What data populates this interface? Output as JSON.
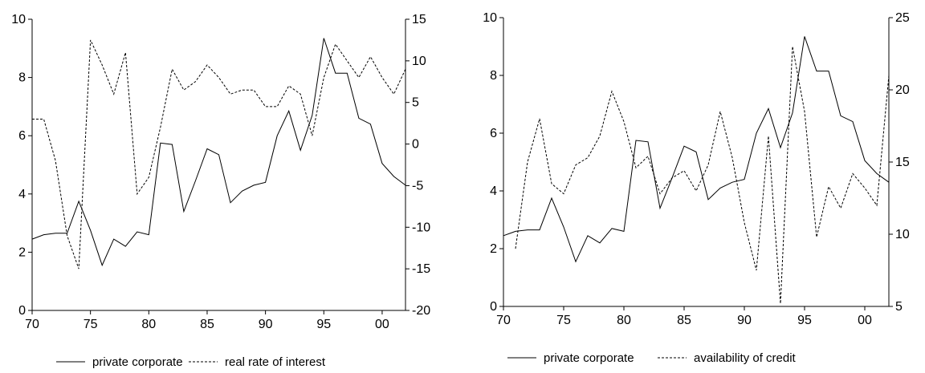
{
  "chart_data": [
    {
      "type": "line",
      "x": [
        1970,
        1971,
        1972,
        1973,
        1974,
        1975,
        1976,
        1977,
        1978,
        1979,
        1980,
        1981,
        1982,
        1983,
        1984,
        1985,
        1986,
        1987,
        1988,
        1989,
        1990,
        1991,
        1992,
        1993,
        1994,
        1995,
        1996,
        1997,
        1998,
        1999,
        2000,
        2001,
        2002
      ],
      "xticks": [
        1970,
        1975,
        1980,
        1985,
        1990,
        1995,
        2000
      ],
      "xtick_labels": [
        "70",
        "75",
        "80",
        "85",
        "90",
        "95",
        "00"
      ],
      "xlim": [
        1970,
        2002
      ],
      "ylim_left": [
        0,
        10
      ],
      "yticks_left": [
        0,
        2,
        4,
        6,
        8,
        10
      ],
      "ylim_right": [
        -20,
        15
      ],
      "yticks_right": [
        -20,
        -15,
        -10,
        -5,
        0,
        5,
        10,
        15
      ],
      "series": [
        {
          "name": "private corporate",
          "axis": "left",
          "style": "solid",
          "values": [
            2.45,
            2.6,
            2.65,
            2.65,
            3.75,
            2.75,
            1.55,
            2.45,
            2.2,
            2.7,
            2.6,
            5.75,
            5.7,
            3.4,
            4.45,
            5.55,
            5.35,
            3.7,
            4.1,
            4.3,
            4.4,
            6.0,
            6.85,
            5.5,
            6.7,
            9.35,
            8.15,
            8.15,
            6.6,
            6.4,
            5.05,
            4.6,
            4.3
          ]
        },
        {
          "name": "real rate of interest",
          "axis": "right",
          "style": "dashed",
          "values": [
            3.0,
            3.0,
            -2.0,
            -11.0,
            -15.0,
            12.5,
            9.5,
            6.0,
            11.0,
            -6.0,
            -4.0,
            2.0,
            9.0,
            6.5,
            7.5,
            9.5,
            8.0,
            6.0,
            6.5,
            6.5,
            4.5,
            4.5,
            7.0,
            6.0,
            1.0,
            8.0,
            12.0,
            10.0,
            8.0,
            10.5,
            8.0,
            6.0,
            9.0
          ]
        }
      ]
    },
    {
      "type": "line",
      "x": [
        1970,
        1971,
        1972,
        1973,
        1974,
        1975,
        1976,
        1977,
        1978,
        1979,
        1980,
        1981,
        1982,
        1983,
        1984,
        1985,
        1986,
        1987,
        1988,
        1989,
        1990,
        1991,
        1992,
        1993,
        1994,
        1995,
        1996,
        1997,
        1998,
        1999,
        2000,
        2001,
        2002
      ],
      "xticks": [
        1970,
        1975,
        1980,
        1985,
        1990,
        1995,
        2000
      ],
      "xtick_labels": [
        "70",
        "75",
        "80",
        "85",
        "90",
        "95",
        "00"
      ],
      "xlim": [
        1970,
        2002
      ],
      "ylim_left": [
        0,
        10
      ],
      "yticks_left": [
        0,
        2,
        4,
        6,
        8,
        10
      ],
      "ylim_right": [
        5,
        25
      ],
      "yticks_right": [
        5,
        10,
        15,
        20,
        25
      ],
      "series": [
        {
          "name": "private corporate",
          "axis": "left",
          "style": "solid",
          "values": [
            2.45,
            2.6,
            2.65,
            2.65,
            3.75,
            2.75,
            1.55,
            2.45,
            2.2,
            2.7,
            2.6,
            5.75,
            5.7,
            3.4,
            4.45,
            5.55,
            5.35,
            3.7,
            4.1,
            4.3,
            4.4,
            6.0,
            6.85,
            5.5,
            6.7,
            9.35,
            8.15,
            8.15,
            6.6,
            6.4,
            5.05,
            4.6,
            4.3
          ]
        },
        {
          "name": "availability of credit",
          "axis": "right",
          "style": "dashed",
          "values": [
            null,
            9.0,
            15.0,
            18.0,
            13.5,
            12.8,
            14.8,
            15.3,
            16.8,
            19.9,
            17.8,
            14.6,
            15.4,
            12.8,
            13.9,
            14.4,
            13.0,
            14.8,
            18.5,
            15.3,
            10.8,
            7.5,
            16.8,
            5.2,
            23.0,
            18.5,
            9.8,
            13.3,
            11.8,
            14.2,
            13.2,
            12.0,
            21.0
          ]
        }
      ]
    }
  ],
  "colors": {
    "line": "#000000",
    "axis": "#000000",
    "background": "#ffffff"
  }
}
